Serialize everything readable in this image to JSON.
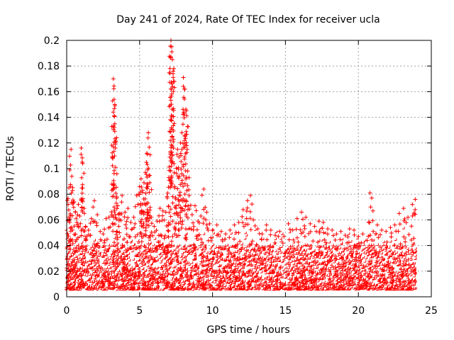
{
  "chart_data": {
    "type": "scatter",
    "title": "Day 241 of 2024, Rate Of TEC Index for receiver ucla",
    "xlabel": "GPS time / hours",
    "ylabel": "ROTI / TECUs",
    "xlim": [
      0,
      25
    ],
    "ylim": [
      0,
      0.2
    ],
    "x_ticks": [
      0,
      5,
      10,
      15,
      20,
      25
    ],
    "x_tick_labels": [
      "0",
      "5",
      "10",
      "15",
      "20",
      "25"
    ],
    "y_ticks": [
      0,
      0.02,
      0.04,
      0.06,
      0.08,
      0.1,
      0.12,
      0.14,
      0.16,
      0.18,
      0.2
    ],
    "y_tick_labels": [
      "0",
      "0.02",
      "0.04",
      "0.06",
      "0.08",
      "0.1",
      "0.12",
      "0.14",
      "0.16",
      "0.18",
      "0.2"
    ],
    "grid": true,
    "marker": "+",
    "color": "#ff0000",
    "series": [
      {
        "name": "ROTI",
        "x": [
          0.05,
          0.1,
          0.15,
          0.2,
          0.25,
          0.3,
          0.35,
          0.4,
          0.5,
          0.6,
          0.7,
          0.8,
          0.9,
          1.0,
          1.1,
          1.2,
          1.3,
          1.5,
          1.7,
          1.9,
          2.1,
          2.3,
          2.5,
          2.7,
          2.9,
          3.1,
          3.2,
          3.25,
          3.3,
          3.35,
          3.4,
          3.5,
          3.6,
          3.8,
          4.0,
          4.2,
          4.4,
          4.6,
          4.8,
          5.0,
          5.1,
          5.2,
          5.3,
          5.4,
          5.5,
          5.55,
          5.6,
          5.7,
          5.8,
          6.0,
          6.2,
          6.4,
          6.6,
          6.8,
          7.0,
          7.05,
          7.1,
          7.15,
          7.2,
          7.25,
          7.3,
          7.4,
          7.5,
          7.6,
          7.7,
          7.8,
          7.9,
          8.0,
          8.1,
          8.2,
          8.3,
          8.4,
          8.6,
          8.8,
          9.0,
          9.2,
          9.4,
          9.6,
          9.8,
          10.0,
          10.3,
          10.6,
          10.9,
          11.2,
          11.5,
          11.8,
          12.1,
          12.4,
          12.6,
          12.8,
          13.1,
          13.4,
          13.7,
          14.0,
          14.3,
          14.6,
          14.9,
          15.2,
          15.5,
          15.8,
          16.1,
          16.4,
          16.7,
          17.0,
          17.3,
          17.6,
          17.9,
          18.2,
          18.5,
          18.8,
          19.1,
          19.4,
          19.7,
          20.0,
          20.3,
          20.6,
          20.8,
          21.0,
          21.3,
          21.6,
          21.9,
          22.2,
          22.5,
          22.8,
          23.1,
          23.4,
          23.7,
          23.9
        ],
        "y": [
          0.03,
          0.072,
          0.085,
          0.058,
          0.045,
          0.115,
          0.094,
          0.052,
          0.074,
          0.066,
          0.058,
          0.072,
          0.063,
          0.116,
          0.104,
          0.069,
          0.055,
          0.052,
          0.061,
          0.075,
          0.064,
          0.051,
          0.049,
          0.061,
          0.062,
          0.083,
          0.17,
          0.154,
          0.15,
          0.101,
          0.073,
          0.071,
          0.065,
          0.079,
          0.066,
          0.069,
          0.058,
          0.062,
          0.079,
          0.086,
          0.092,
          0.083,
          0.089,
          0.097,
          0.112,
          0.099,
          0.128,
          0.089,
          0.062,
          0.055,
          0.059,
          0.069,
          0.067,
          0.066,
          0.093,
          0.129,
          0.113,
          0.2,
          0.195,
          0.185,
          0.176,
          0.085,
          0.071,
          0.115,
          0.109,
          0.12,
          0.128,
          0.171,
          0.162,
          0.145,
          0.098,
          0.079,
          0.064,
          0.071,
          0.059,
          0.063,
          0.084,
          0.066,
          0.057,
          0.052,
          0.056,
          0.051,
          0.049,
          0.052,
          0.056,
          0.058,
          0.068,
          0.075,
          0.079,
          0.06,
          0.053,
          0.049,
          0.056,
          0.052,
          0.048,
          0.051,
          0.047,
          0.057,
          0.052,
          0.061,
          0.066,
          0.062,
          0.057,
          0.055,
          0.059,
          0.058,
          0.053,
          0.052,
          0.049,
          0.051,
          0.048,
          0.053,
          0.052,
          0.047,
          0.049,
          0.044,
          0.081,
          0.067,
          0.056,
          0.052,
          0.051,
          0.054,
          0.056,
          0.065,
          0.069,
          0.062,
          0.072,
          0.076
        ]
      }
    ],
    "dense_band": {
      "description_units": "data",
      "typical_min": 0.005,
      "typical_max": 0.04,
      "x_range": [
        0,
        24
      ]
    }
  }
}
